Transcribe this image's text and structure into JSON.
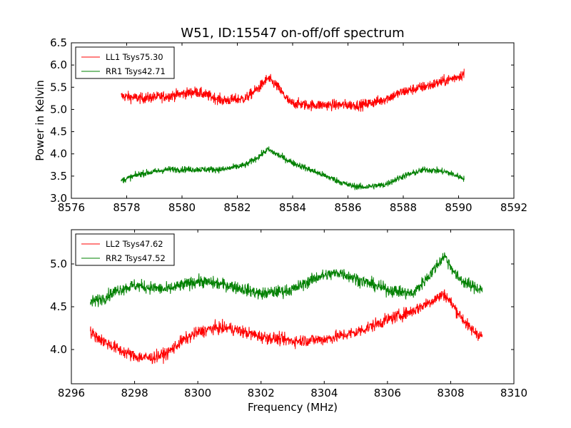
{
  "chart_data": [
    {
      "type": "line",
      "title": "W51, ID:15547 on-off/off spectrum",
      "xlabel": "",
      "ylabel": "Power in Kelvin",
      "xlim": [
        8576,
        8592
      ],
      "ylim": [
        3.0,
        6.5
      ],
      "x_ticks": [
        8576,
        8578,
        8580,
        8582,
        8584,
        8586,
        8588,
        8590,
        8592
      ],
      "y_ticks": [
        3.0,
        3.5,
        4.0,
        4.5,
        5.0,
        5.5,
        6.0,
        6.5
      ],
      "x_tick_labels": [
        "8576",
        "8578",
        "8580",
        "8582",
        "8584",
        "8586",
        "8588",
        "8590",
        "8592"
      ],
      "y_tick_labels": [
        "3.0",
        "3.5",
        "4.0",
        "4.5",
        "5.0",
        "5.5",
        "6.0",
        "6.5"
      ],
      "grid": false,
      "legend_position": "top-left",
      "series": [
        {
          "name": "LL1 Tsys75.30",
          "color": "#ff0000",
          "noise": 0.1,
          "x": [
            8577.8,
            8578.5,
            8579.5,
            8580.5,
            8581.5,
            8582.3,
            8582.8,
            8583.1,
            8583.4,
            8583.9,
            8584.5,
            8585.5,
            8586.5,
            8587.2,
            8588.0,
            8589.0,
            8589.8,
            8590.2
          ],
          "values": [
            5.3,
            5.25,
            5.3,
            5.4,
            5.2,
            5.25,
            5.5,
            5.7,
            5.55,
            5.15,
            5.1,
            5.1,
            5.1,
            5.2,
            5.4,
            5.55,
            5.7,
            5.8
          ]
        },
        {
          "name": "RR1 Tsys42.71",
          "color": "#008000",
          "noise": 0.06,
          "x": [
            8577.8,
            8578.5,
            8579.5,
            8580.5,
            8581.5,
            8582.3,
            8582.8,
            8583.1,
            8583.4,
            8584.0,
            8585.0,
            8586.0,
            8586.5,
            8587.3,
            8588.0,
            8588.8,
            8589.5,
            8590.2
          ],
          "values": [
            3.4,
            3.55,
            3.65,
            3.65,
            3.65,
            3.75,
            3.95,
            4.1,
            4.0,
            3.8,
            3.55,
            3.3,
            3.25,
            3.3,
            3.5,
            3.65,
            3.6,
            3.45
          ]
        }
      ]
    },
    {
      "type": "line",
      "title": "",
      "xlabel": "Frequency (MHz)",
      "ylabel": "",
      "xlim": [
        8296,
        8310
      ],
      "ylim": [
        3.6,
        5.4
      ],
      "x_ticks": [
        8296,
        8298,
        8300,
        8302,
        8304,
        8306,
        8308,
        8310
      ],
      "y_ticks": [
        4.0,
        4.5,
        5.0
      ],
      "x_tick_labels": [
        "8296",
        "8298",
        "8300",
        "8302",
        "8304",
        "8306",
        "8308",
        "8310"
      ],
      "y_tick_labels": [
        "4.0",
        "4.5",
        "5.0"
      ],
      "grid": false,
      "legend_position": "top-left",
      "series": [
        {
          "name": "LL2 Tsys47.62",
          "color": "#ff0000",
          "noise": 0.06,
          "x": [
            8296.6,
            8297.0,
            8297.5,
            8298.0,
            8298.5,
            8299.0,
            8299.5,
            8300.0,
            8300.5,
            8301.0,
            8301.5,
            8302.0,
            8303.0,
            8304.0,
            8305.0,
            8306.0,
            8306.8,
            8307.3,
            8307.8,
            8308.2,
            8308.6,
            8309.0
          ],
          "values": [
            4.2,
            4.1,
            4.0,
            3.92,
            3.9,
            3.95,
            4.1,
            4.2,
            4.25,
            4.25,
            4.2,
            4.15,
            4.1,
            4.12,
            4.2,
            4.35,
            4.45,
            4.55,
            4.65,
            4.45,
            4.25,
            4.15
          ]
        },
        {
          "name": "RR2 Tsys47.52",
          "color": "#008000",
          "noise": 0.06,
          "x": [
            8296.6,
            8297.0,
            8297.5,
            8298.0,
            8299.0,
            8300.0,
            8301.0,
            8302.0,
            8303.0,
            8303.8,
            8304.5,
            8305.2,
            8306.0,
            8306.8,
            8307.4,
            8307.8,
            8308.2,
            8308.6,
            8309.0
          ],
          "values": [
            4.55,
            4.6,
            4.7,
            4.75,
            4.7,
            4.8,
            4.75,
            4.65,
            4.7,
            4.85,
            4.9,
            4.8,
            4.7,
            4.65,
            4.9,
            5.1,
            4.85,
            4.75,
            4.7
          ]
        }
      ]
    }
  ]
}
